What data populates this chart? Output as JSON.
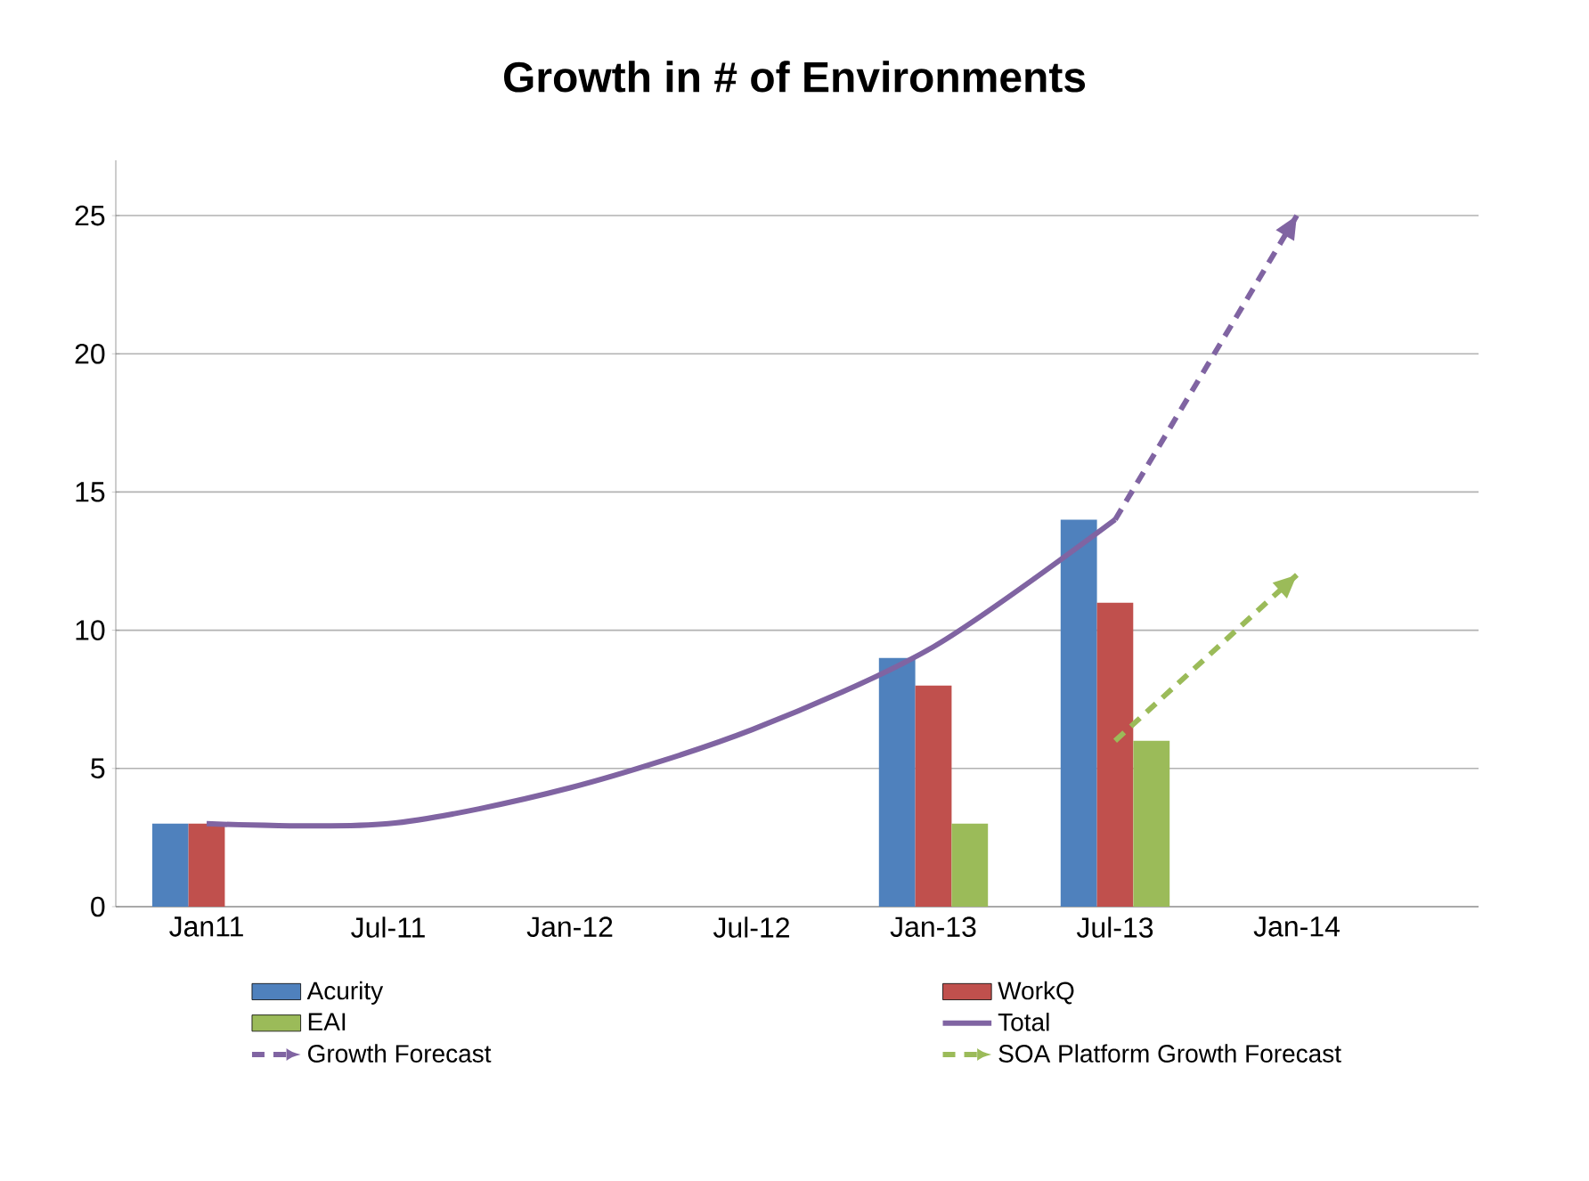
{
  "chart_data": {
    "type": "bar",
    "title": "Growth in # of Environments",
    "categories": [
      "Jan11",
      "Jul-11",
      "Jan-12",
      "Jul-12",
      "Jan-13",
      "Jul-13",
      "Jan-14"
    ],
    "series": [
      {
        "name": "Acurity",
        "color": "#4f81bd",
        "values": [
          3,
          null,
          null,
          null,
          9,
          14,
          null
        ]
      },
      {
        "name": "WorkQ",
        "color": "#c0504d",
        "values": [
          3,
          null,
          null,
          null,
          8,
          11,
          null
        ]
      },
      {
        "name": "EAI",
        "color": "#9bbb59",
        "values": [
          null,
          null,
          null,
          null,
          3,
          6,
          null
        ]
      },
      {
        "name": "Total",
        "type": "line",
        "color": "#8064a2",
        "line_style": "solid",
        "values": [
          3,
          3,
          4.3,
          6.4,
          9.4,
          14,
          null
        ]
      },
      {
        "name": "Growth Forecast",
        "type": "line",
        "color": "#8064a2",
        "line_style": "dashed",
        "values": [
          null,
          null,
          null,
          null,
          null,
          14,
          25
        ]
      },
      {
        "name": "SOA Platform Growth Forecast",
        "type": "line",
        "color": "#9bbb59",
        "line_style": "dashed",
        "values": [
          null,
          null,
          null,
          null,
          null,
          6,
          12
        ]
      }
    ],
    "ylim": [
      0,
      27
    ],
    "yticks": [
      0,
      5,
      10,
      15,
      20,
      25
    ],
    "grid": "y",
    "legend": "bottom",
    "marker": "none"
  }
}
